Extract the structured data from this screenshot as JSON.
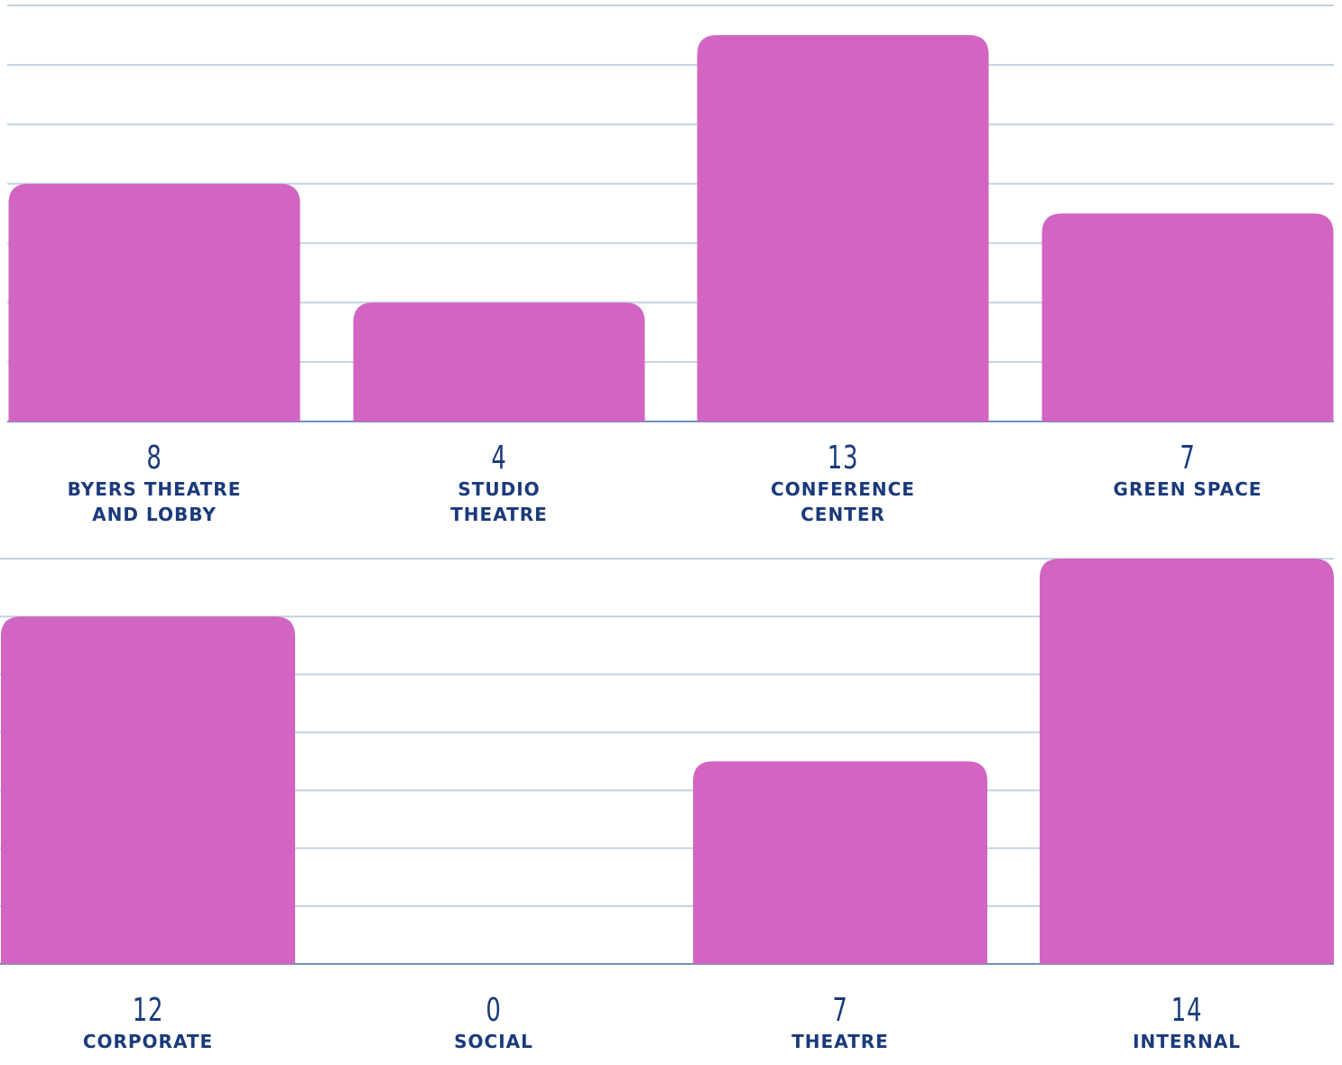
{
  "colors": {
    "bar": "#d165c1",
    "grid": "#c3d1e0",
    "baseline": "#6f8fc0",
    "label": "#1a3a7a"
  },
  "chart_data": [
    {
      "type": "bar",
      "categories": [
        [
          "BYERS THEATRE",
          "AND LOBBY"
        ],
        [
          "STUDIO",
          "THEATRE"
        ],
        [
          "CONFERENCE",
          "CENTER"
        ],
        [
          "GREEN SPACE"
        ]
      ],
      "values": [
        8,
        4,
        13,
        7
      ],
      "value_labels": [
        "8",
        "4",
        "13",
        "7"
      ],
      "ylim": [
        0,
        14
      ],
      "grid": true
    },
    {
      "type": "bar",
      "categories": [
        [
          "CORPORATE"
        ],
        [
          "SOCIAL"
        ],
        [
          "THEATRE"
        ],
        [
          "INTERNAL"
        ]
      ],
      "values": [
        12,
        0,
        7,
        14
      ],
      "value_labels": [
        "12",
        "0",
        "7",
        "14"
      ],
      "ylim": [
        0,
        14
      ],
      "grid": true
    }
  ]
}
